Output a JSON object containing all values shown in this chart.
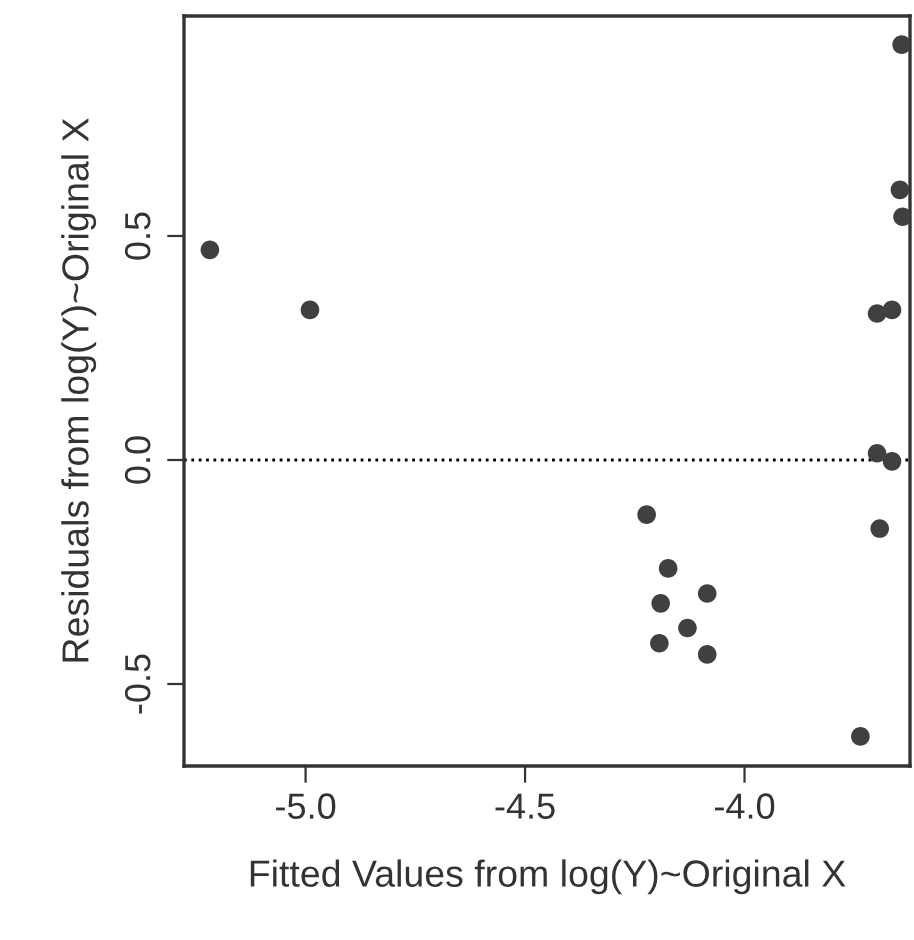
{
  "chart_data": {
    "type": "scatter",
    "xlabel": "Fitted Values from log(Y)~Original X",
    "ylabel": "Residuals from log(Y)~Original X",
    "x": [
      -5.218,
      -4.99,
      -3.642,
      -3.646,
      -3.64,
      -3.698,
      -3.664,
      -3.698,
      -3.664,
      -3.692,
      -4.223,
      -4.174,
      -4.191,
      -4.085,
      -4.13,
      -4.194,
      -4.085,
      -3.736
    ],
    "values": [
      0.469,
      0.335,
      0.927,
      0.603,
      0.543,
      0.327,
      0.335,
      0.015,
      -0.003,
      -0.153,
      -0.122,
      -0.242,
      -0.32,
      -0.298,
      -0.375,
      -0.409,
      -0.434,
      -0.617
    ],
    "color": "#404040",
    "marker": "circle",
    "xlim": [
      -5.277,
      -3.623
    ],
    "ylim": [
      -0.683,
      0.991
    ],
    "xticks": [
      {
        "value": -5.0,
        "label": "-5.0"
      },
      {
        "value": -4.5,
        "label": "-4.5"
      },
      {
        "value": -4.0,
        "label": "-4.0"
      }
    ],
    "yticks": [
      {
        "value": -0.5,
        "label": "-0.5"
      },
      {
        "value": 0.0,
        "label": "0.0"
      },
      {
        "value": 0.5,
        "label": "0.5"
      }
    ],
    "ref_lines": [
      {
        "axis": "y",
        "value": 0,
        "line_style": "dotted",
        "color": "#000000"
      }
    ],
    "grid": false
  }
}
